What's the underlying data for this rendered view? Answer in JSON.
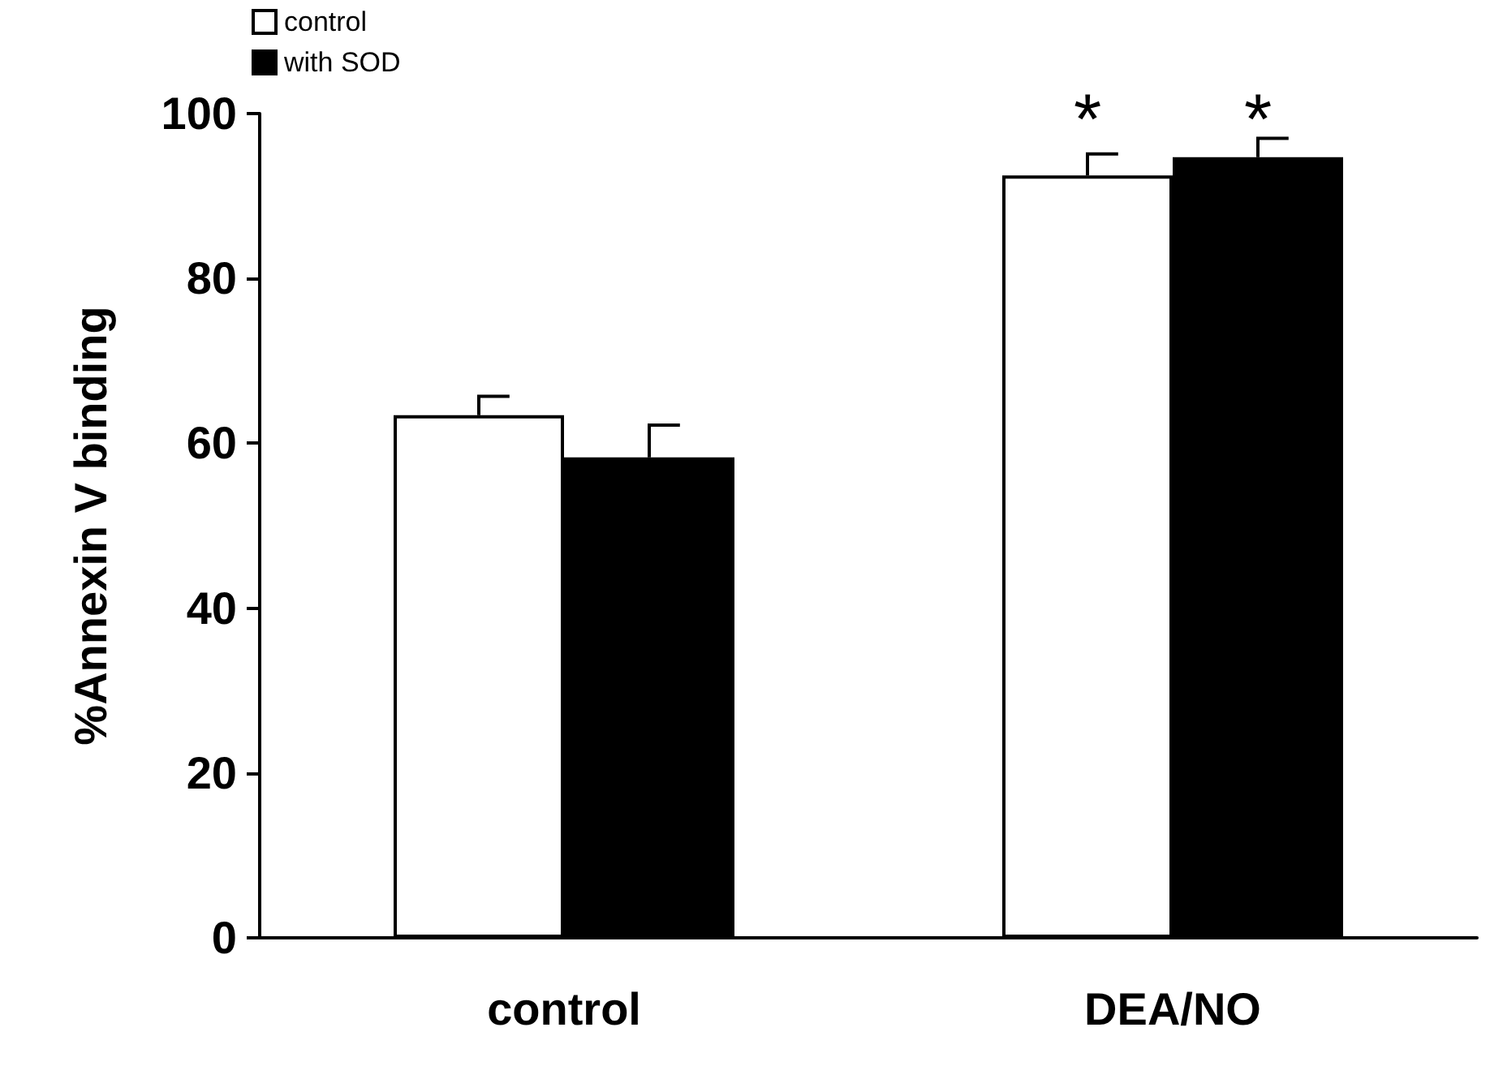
{
  "chart_data": {
    "type": "bar",
    "ylabel": "%Annexin V binding",
    "categories": [
      "control",
      "DEA/NO"
    ],
    "series": [
      {
        "name": "control",
        "color": "#ffffff",
        "values": [
          63.4,
          92.5
        ],
        "errors": [
          [
            63.4,
            65.7
          ],
          [
            92.5,
            95.1
          ]
        ]
      },
      {
        "name": "with SOD",
        "color": "#000000",
        "values": [
          58.3,
          94.7
        ],
        "errors": [
          [
            58.3,
            62.2
          ],
          [
            94.7,
            97
          ]
        ]
      }
    ],
    "ylim": [
      0,
      100
    ],
    "yticks": [
      0,
      20,
      40,
      60,
      80,
      100
    ],
    "grid": false,
    "legend": "top left",
    "annotations": [
      "*",
      "*"
    ]
  }
}
